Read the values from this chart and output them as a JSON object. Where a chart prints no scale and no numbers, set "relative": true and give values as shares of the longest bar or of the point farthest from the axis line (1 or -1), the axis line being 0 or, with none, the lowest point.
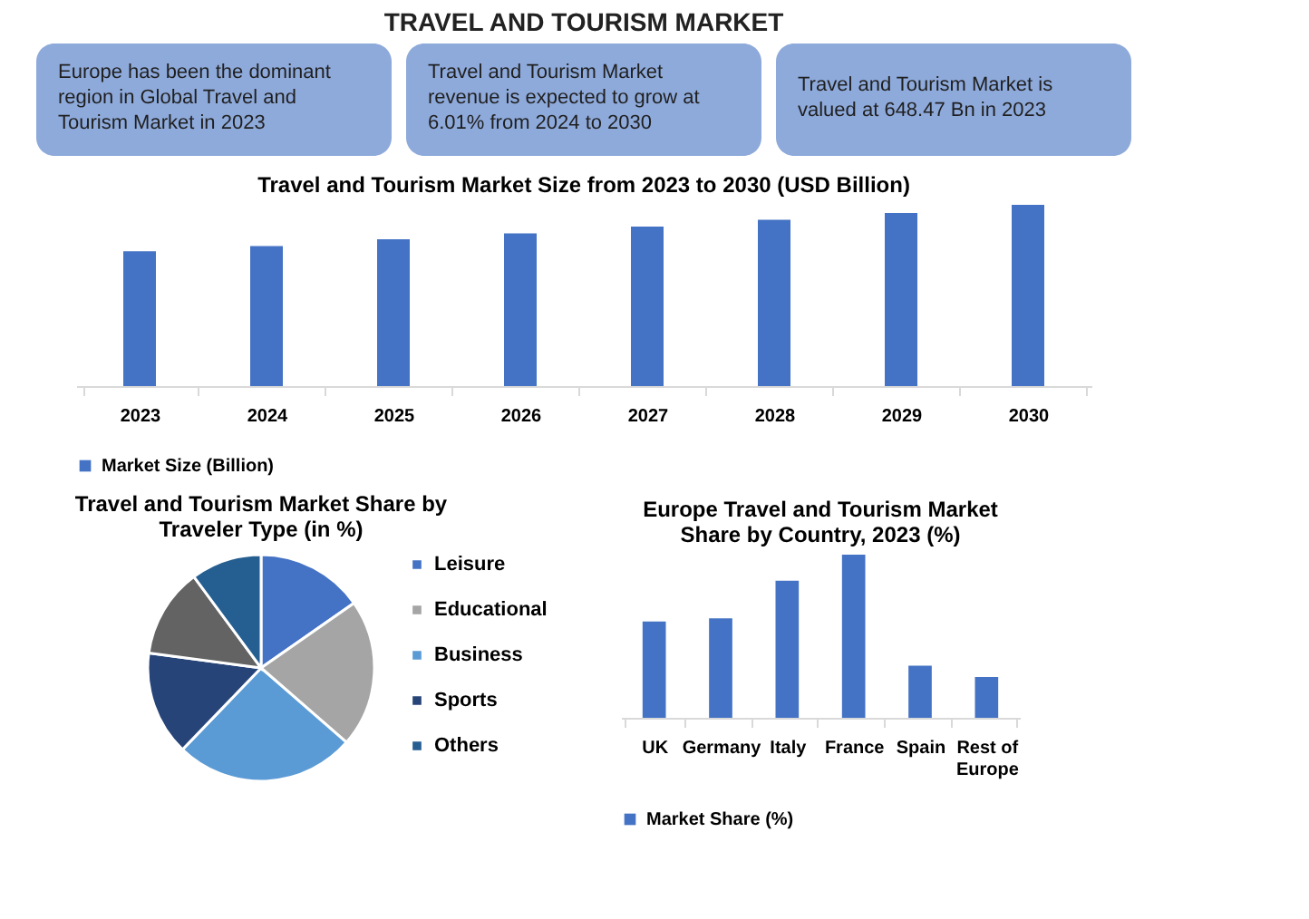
{
  "chart_data": [
    {
      "type": "other",
      "title": "TRAVEL AND TOURISM MARKET",
      "color": "#8eaadb",
      "annotations": [
        "Europe has been the dominant region in Global Travel and Tourism Market in 2023",
        "Travel and Tourism Market revenue is expected to grow at 6.01% from 2024 to 2030",
        "Travel and Tourism Market is valued at 648.47 Bn in 2023"
      ]
    },
    {
      "type": "bar",
      "title": "Travel and Tourism Market Size from 2023 to 2030 (USD Billion)",
      "relative": true,
      "legend": "bottom",
      "grid": false,
      "categories": [
        "2023",
        "2024",
        "2025",
        "2026",
        "2027",
        "2028",
        "2029",
        "2030"
      ],
      "series": [
        {
          "name": "Market Size (Billion)",
          "color": "#4472c4",
          "values": [
            0.744,
            0.773,
            0.81,
            0.843,
            0.88,
            0.917,
            0.955,
            1
          ]
        }
      ]
    },
    {
      "type": "pie",
      "title": "Travel and Tourism Market Share by Traveler Type  (in %)",
      "legend": "right",
      "categories": [
        "Leisure",
        "Educational",
        "Business",
        "Sports",
        null,
        "Others"
      ],
      "values": [
        15.3,
        21.1,
        25.8,
        14.9,
        12.8,
        10.1
      ],
      "colors": [
        "#4472c4",
        "#a5a5a5",
        "#5b9bd5",
        "#264478",
        "#636363",
        "#255e91"
      ]
    },
    {
      "type": "bar",
      "title": "Europe Travel and Tourism Market Share by Country, 2023 (%)",
      "relative": true,
      "legend": "bottom",
      "grid": false,
      "categories": [
        "UK",
        "Germany",
        "Italy",
        "France",
        "Spain",
        "Rest of Europe"
      ],
      "series": [
        {
          "name": "Market Share (%)",
          "color": "#4472c4",
          "values": [
            0.59,
            0.61,
            0.84,
            1,
            0.32,
            0.25
          ]
        }
      ]
    }
  ]
}
